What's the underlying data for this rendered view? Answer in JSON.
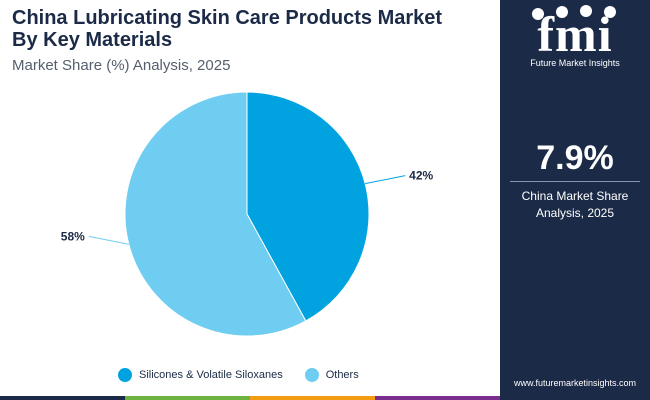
{
  "header": {
    "title_line1": "China Lubricating Skin Care Products Market",
    "title_line2": "By Key Materials",
    "subtitle": "Market Share (%) Analysis, 2025"
  },
  "chart_data": {
    "type": "pie",
    "title": "China Lubricating Skin Care Products Market By Key Materials",
    "subtitle": "Market Share (%) Analysis, 2025",
    "slices": [
      {
        "name": "Silicones & Volatile Siloxanes",
        "value": 42,
        "label": "42%",
        "color": "#00a3e0"
      },
      {
        "name": "Others",
        "value": 58,
        "label": "58%",
        "color": "#6fcdf1"
      }
    ],
    "legend_position": "bottom"
  },
  "legend": {
    "items": [
      {
        "label": "Silicones & Volatile Siloxanes",
        "color": "#00a3e0"
      },
      {
        "label": "Others",
        "color": "#6fcdf1"
      }
    ]
  },
  "sidebar": {
    "logo_text": "fmi",
    "logo_subtitle": "Future Market Insights",
    "stat_value": "7.9%",
    "stat_label_line1": "China Market Share",
    "stat_label_line2": "Analysis, 2025",
    "website": "www.futuremarketinsights.com"
  },
  "colors": {
    "panel": "#1b2a47",
    "bar": [
      "#1b2a47",
      "#6cb33f",
      "#f39c12",
      "#7b2d8e"
    ]
  }
}
